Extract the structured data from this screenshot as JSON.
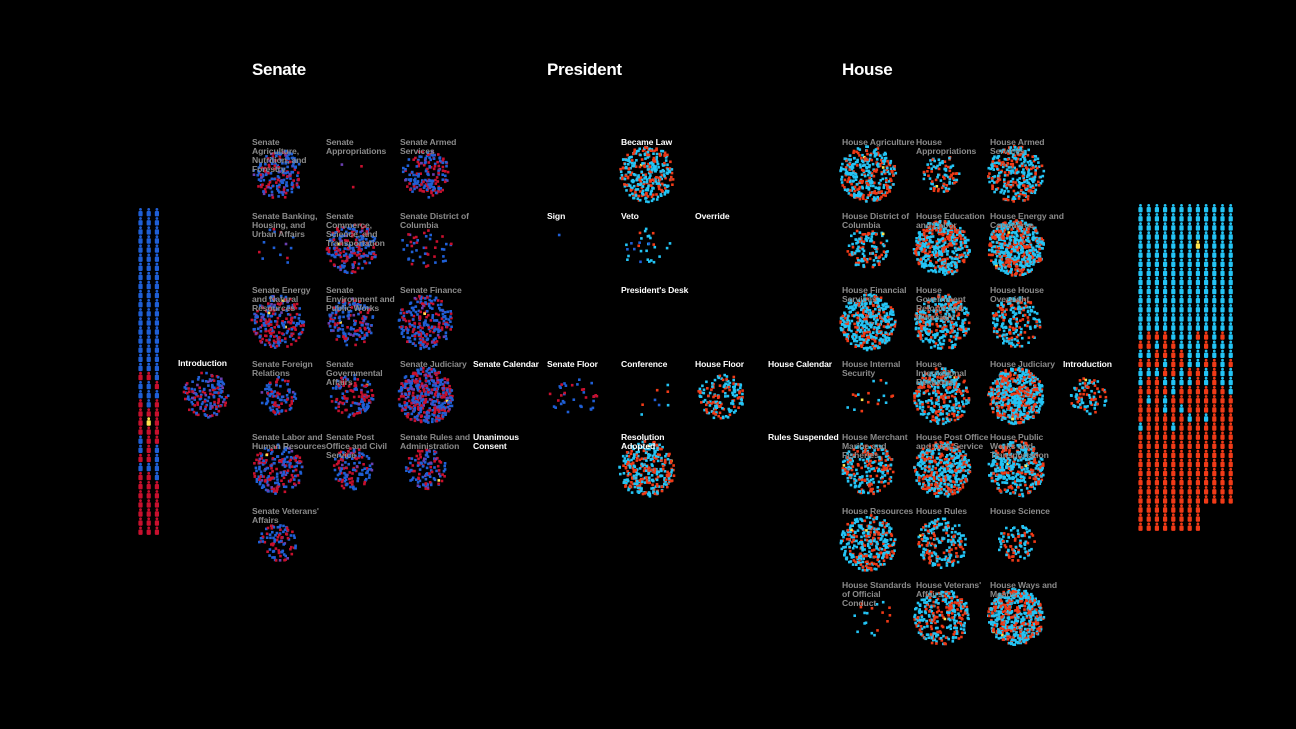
{
  "sections": [
    {
      "id": "senate",
      "title": "Senate"
    },
    {
      "id": "president",
      "title": "President"
    },
    {
      "id": "house",
      "title": "House"
    }
  ],
  "colors": {
    "background": "#000000",
    "senate_dem": "#1f5fd6",
    "senate_rep": "#c8102e",
    "house_dem": "#23c4f5",
    "house_rep": "#f03a17",
    "highlight": "#ffe34d",
    "label_committee": "#8a8a8a",
    "label_stage": "#ffffff"
  },
  "icons": {
    "member": "person-icon"
  },
  "nodes": [
    {
      "id": "senate-introduction",
      "label": "Introduction",
      "kind": "stage",
      "palette": "senate",
      "count": 150
    },
    {
      "id": "senate-agriculture",
      "label": "Senate Agriculture, Nutrition, and Forestry",
      "kind": "committee",
      "palette": "senate",
      "count": 190
    },
    {
      "id": "senate-appropriations",
      "label": "Senate Appropriations",
      "kind": "committee",
      "palette": "senate",
      "count": 3
    },
    {
      "id": "senate-armed-services",
      "label": "Senate Armed Services",
      "kind": "committee",
      "palette": "senate",
      "count": 170
    },
    {
      "id": "senate-banking",
      "label": "Senate Banking, Housing, and Urban Affairs",
      "kind": "committee",
      "palette": "senate",
      "count": 14
    },
    {
      "id": "senate-commerce",
      "label": "Senate Commerce, Science, and Transportation",
      "kind": "committee",
      "palette": "senate",
      "count": 200
    },
    {
      "id": "senate-dc",
      "label": "Senate District of Columbia",
      "kind": "committee",
      "palette": "senate",
      "count": 45
    },
    {
      "id": "senate-energy",
      "label": "Senate Energy and Natural Resources",
      "kind": "committee",
      "palette": "senate",
      "count": 230
    },
    {
      "id": "senate-environment",
      "label": "Senate Environment and Public Works",
      "kind": "committee",
      "palette": "senate",
      "count": 170
    },
    {
      "id": "senate-finance",
      "label": "Senate Finance",
      "kind": "committee",
      "palette": "senate",
      "count": 250
    },
    {
      "id": "senate-foreign-relations",
      "label": "Senate Foreign Relations",
      "kind": "committee",
      "palette": "senate",
      "count": 90
    },
    {
      "id": "senate-governmental-affairs",
      "label": "Senate Governmental Affairs",
      "kind": "committee",
      "palette": "senate",
      "count": 130
    },
    {
      "id": "senate-judiciary",
      "label": "Senate Judiciary",
      "kind": "committee",
      "palette": "senate",
      "count": 420
    },
    {
      "id": "senate-labor",
      "label": "Senate Labor and Human Resources",
      "kind": "committee",
      "palette": "senate",
      "count": 200
    },
    {
      "id": "senate-post-office",
      "label": "Senate Post Office and Civil Service",
      "kind": "committee",
      "palette": "senate",
      "count": 120
    },
    {
      "id": "senate-rules",
      "label": "Senate Rules and Administration",
      "kind": "committee",
      "palette": "senate",
      "count": 110
    },
    {
      "id": "senate-veterans",
      "label": "Senate Veterans' Affairs",
      "kind": "committee",
      "palette": "senate",
      "count": 90
    },
    {
      "id": "senate-calendar",
      "label": "Senate Calendar",
      "kind": "stage",
      "palette": "senate",
      "count": 0
    },
    {
      "id": "unanimous-consent",
      "label": "Unanimous Consent",
      "kind": "stage",
      "palette": "senate",
      "count": 0
    },
    {
      "id": "sign",
      "label": "Sign",
      "kind": "stage",
      "palette": "senate",
      "count": 1
    },
    {
      "id": "became-law",
      "label": "Became Law",
      "kind": "stage",
      "palette": "house",
      "count": 320
    },
    {
      "id": "veto",
      "label": "Veto",
      "kind": "stage",
      "palette": "mixed",
      "count": 30
    },
    {
      "id": "override",
      "label": "Override",
      "kind": "stage",
      "palette": "house",
      "count": 0
    },
    {
      "id": "presidents-desk",
      "label": "President's Desk",
      "kind": "stage",
      "palette": "house",
      "count": 0
    },
    {
      "id": "senate-floor",
      "label": "Senate Floor",
      "kind": "stage",
      "palette": "senate",
      "count": 35
    },
    {
      "id": "conference",
      "label": "Conference",
      "kind": "stage",
      "palette": "mixed",
      "count": 8
    },
    {
      "id": "house-floor",
      "label": "House Floor",
      "kind": "stage",
      "palette": "house",
      "count": 160
    },
    {
      "id": "house-calendar",
      "label": "House Calendar",
      "kind": "stage",
      "palette": "house",
      "count": 0
    },
    {
      "id": "resolution-adopted",
      "label": "Resolution Adopted",
      "kind": "stage",
      "palette": "house",
      "count": 320
    },
    {
      "id": "rules-suspended",
      "label": "Rules Suspended",
      "kind": "stage",
      "palette": "house",
      "count": 0
    },
    {
      "id": "house-agriculture",
      "label": "House Agriculture",
      "kind": "committee",
      "palette": "house",
      "count": 330
    },
    {
      "id": "house-appropriations",
      "label": "House Appropriations",
      "kind": "committee",
      "palette": "house",
      "count": 90
    },
    {
      "id": "house-armed-services",
      "label": "House Armed Services",
      "kind": "committee",
      "palette": "house",
      "count": 300
    },
    {
      "id": "house-dc",
      "label": "House District of Columbia",
      "kind": "committee",
      "palette": "house",
      "count": 120
    },
    {
      "id": "house-education",
      "label": "House Education and Labor",
      "kind": "committee",
      "palette": "house",
      "count": 460
    },
    {
      "id": "house-energy",
      "label": "House Energy and Commerce",
      "kind": "committee",
      "palette": "house",
      "count": 560
    },
    {
      "id": "house-financial",
      "label": "House Financial Services",
      "kind": "committee",
      "palette": "house",
      "count": 420
    },
    {
      "id": "house-government-reform",
      "label": "House Government Reform and Oversight",
      "kind": "committee",
      "palette": "house",
      "count": 330
    },
    {
      "id": "house-oversight",
      "label": "House House Oversight",
      "kind": "committee",
      "palette": "house",
      "count": 200
    },
    {
      "id": "house-internal-security",
      "label": "House Internal Security",
      "kind": "committee",
      "palette": "house",
      "count": 18
    },
    {
      "id": "house-international",
      "label": "House International Relations",
      "kind": "committee",
      "palette": "house",
      "count": 330
    },
    {
      "id": "house-judiciary",
      "label": "House Judiciary",
      "kind": "committee",
      "palette": "house",
      "count": 560
    },
    {
      "id": "house-introduction",
      "label": "Introduction",
      "kind": "stage",
      "palette": "house",
      "count": 90
    },
    {
      "id": "house-merchant-marine",
      "label": "House Merchant Marine and Fisheries",
      "kind": "committee",
      "palette": "house",
      "count": 220
    },
    {
      "id": "house-post-office",
      "label": "House Post Office and Civil Service",
      "kind": "committee",
      "palette": "house",
      "count": 440
    },
    {
      "id": "house-public-works",
      "label": "House Public Works and Transportation",
      "kind": "committee",
      "palette": "house",
      "count": 360
    },
    {
      "id": "house-resources",
      "label": "House Resources",
      "kind": "committee",
      "palette": "house",
      "count": 330
    },
    {
      "id": "house-rules",
      "label": "House Rules",
      "kind": "committee",
      "palette": "house",
      "count": 200
    },
    {
      "id": "house-science",
      "label": "House Science",
      "kind": "committee",
      "palette": "house",
      "count": 90
    },
    {
      "id": "house-standards",
      "label": "House Standards of Official Conduct",
      "kind": "committee",
      "palette": "house",
      "count": 18
    },
    {
      "id": "house-veterans",
      "label": "House Veterans' Affairs",
      "kind": "committee",
      "palette": "house",
      "count": 300
    },
    {
      "id": "house-ways-means",
      "label": "House Ways and Means",
      "kind": "committee",
      "palette": "house",
      "count": 560
    }
  ],
  "member_stacks": [
    {
      "id": "senate-members",
      "palette": "senate",
      "columns": 3,
      "rows": 36,
      "dem_cells": 54,
      "highlight_cell": 70
    },
    {
      "id": "house-members",
      "palette": "house",
      "columns": 12,
      "rows": 36,
      "dem_cells": 180,
      "highlight_cell": 55
    }
  ]
}
